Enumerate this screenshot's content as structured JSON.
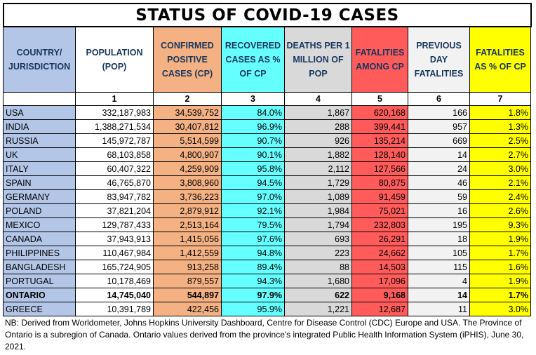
{
  "title": "STATUS OF COVID-19 CASES",
  "colors": {
    "country": "#B4C6E7",
    "confirmed": "#F4B183",
    "recovered": "#66FFFF",
    "deaths_per_million": "#D9D9D9",
    "fatalities": "#FF5B5B",
    "previous_day": "#F2F2F2",
    "fatality_pct": "#FFFF00"
  },
  "headers": {
    "country": "COUNTRY/ JURISDICTION",
    "population": "POPULATION (POP)",
    "confirmed": "CONFIRMED POSITIVE CASES (CP)",
    "recovered": "RECOVERED CASES AS % OF CP",
    "deaths_per_million": "DEATHS PER 1 MILLION OF POP",
    "fatalities": "FATALITIES AMONG CP",
    "previous_day": "PREVIOUS DAY FATALITIES",
    "fatality_pct": "FATALITIES AS % OF CP"
  },
  "column_numbers": [
    "",
    "1",
    "2",
    "3",
    "4",
    "5",
    "6",
    "7"
  ],
  "rows": [
    {
      "country": "USA",
      "population": "332,187,983",
      "confirmed": "34,539,752",
      "recovered": "84.0%",
      "deaths_per_million": "1,867",
      "fatalities": "620,168",
      "previous_day": "166",
      "fatality_pct": "1.8%"
    },
    {
      "country": "INDIA",
      "population": "1,388,271,534",
      "confirmed": "30,407,812",
      "recovered": "96.9%",
      "deaths_per_million": "288",
      "fatalities": "399,441",
      "previous_day": "957",
      "fatality_pct": "1.3%"
    },
    {
      "country": "RUSSIA",
      "population": "145,972,787",
      "confirmed": "5,514,599",
      "recovered": "90.7%",
      "deaths_per_million": "926",
      "fatalities": "135,214",
      "previous_day": "669",
      "fatality_pct": "2.5%"
    },
    {
      "country": "UK",
      "population": "68,103,858",
      "confirmed": "4,800,907",
      "recovered": "90.1%",
      "deaths_per_million": "1,882",
      "fatalities": "128,140",
      "previous_day": "14",
      "fatality_pct": "2.7%"
    },
    {
      "country": "ITALY",
      "population": "60,407,322",
      "confirmed": "4,259,909",
      "recovered": "95.8%",
      "deaths_per_million": "2,112",
      "fatalities": "127,566",
      "previous_day": "24",
      "fatality_pct": "3.0%"
    },
    {
      "country": "SPAIN",
      "population": "46,765,870",
      "confirmed": "3,808,960",
      "recovered": "94.5%",
      "deaths_per_million": "1,729",
      "fatalities": "80,875",
      "previous_day": "46",
      "fatality_pct": "2.1%"
    },
    {
      "country": "GERMANY",
      "population": "83,947,782",
      "confirmed": "3,736,223",
      "recovered": "97.0%",
      "deaths_per_million": "1,089",
      "fatalities": "91,459",
      "previous_day": "59",
      "fatality_pct": "2.4%"
    },
    {
      "country": "POLAND",
      "population": "37,821,204",
      "confirmed": "2,879,912",
      "recovered": "92.1%",
      "deaths_per_million": "1,984",
      "fatalities": "75,021",
      "previous_day": "16",
      "fatality_pct": "2.6%"
    },
    {
      "country": "MEXICO",
      "population": "129,787,433",
      "confirmed": "2,513,164",
      "recovered": "79.5%",
      "deaths_per_million": "1,794",
      "fatalities": "232,803",
      "previous_day": "195",
      "fatality_pct": "9.3%"
    },
    {
      "country": "CANADA",
      "population": "37,943,913",
      "confirmed": "1,415,056",
      "recovered": "97.6%",
      "deaths_per_million": "693",
      "fatalities": "26,291",
      "previous_day": "18",
      "fatality_pct": "1.9%"
    },
    {
      "country": "PHILIPPINES",
      "population": "110,467,984",
      "confirmed": "1,412,559",
      "recovered": "94.8%",
      "deaths_per_million": "223",
      "fatalities": "24,662",
      "previous_day": "105",
      "fatality_pct": "1.7%"
    },
    {
      "country": "BANGLADESH",
      "population": "165,724,905",
      "confirmed": "913,258",
      "recovered": "89.4%",
      "deaths_per_million": "88",
      "fatalities": "14,503",
      "previous_day": "115",
      "fatality_pct": "1.6%"
    },
    {
      "country": "PORTUGAL",
      "population": "10,178,469",
      "confirmed": "879,557",
      "recovered": "94.3%",
      "deaths_per_million": "1,680",
      "fatalities": "17,096",
      "previous_day": "4",
      "fatality_pct": "1.9%"
    },
    {
      "country": "ONTARIO",
      "population": "14,745,040",
      "confirmed": "544,897",
      "recovered": "97.9%",
      "deaths_per_million": "622",
      "fatalities": "9,168",
      "previous_day": "14",
      "fatality_pct": "1.7%",
      "bold": true
    },
    {
      "country": "GREECE",
      "population": "10,391,789",
      "confirmed": "422,456",
      "recovered": "95.9%",
      "deaths_per_million": "1,221",
      "fatalities": "12,687",
      "previous_day": "11",
      "fatality_pct": "3.0%"
    }
  ],
  "note": "NB: Derived from Worldometer, Johns Hopkins University Dashboard, Centre for Disease Control (CDC) Europe and USA. The Province of Ontario is a subregion of Canada. Ontario values derived from the province's integrated Public Health Information System (iPHIS), June 30, 2021."
}
